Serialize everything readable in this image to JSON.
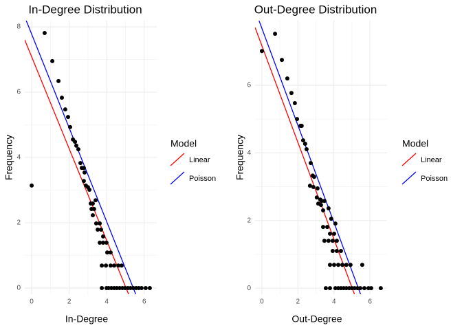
{
  "chart_data": [
    {
      "type": "scatter",
      "title": "In-Degree Distribution",
      "x_label": "In-Degree",
      "y_label": "Frequency",
      "xlim": [
        -0.37,
        6.67
      ],
      "ylim": [
        -0.19,
        8.19
      ],
      "xticks": [
        0,
        2,
        4,
        6
      ],
      "yticks": [
        0,
        2,
        4,
        6,
        8
      ],
      "grid": true,
      "color": "#000000",
      "x": [
        0,
        0.69,
        1.1,
        1.43,
        1.61,
        1.79,
        1.94,
        2.05,
        2.2,
        2.31,
        2.38,
        2.49,
        2.6,
        2.67,
        2.78,
        2.82,
        2.78,
        2.89,
        3.0,
        3.08,
        3.15,
        3.26,
        3.19,
        3.33,
        3.41,
        3.26,
        3.44,
        3.63,
        3.52,
        3.7,
        3.81,
        3.63,
        3.81,
        3.99,
        4.03,
        4.21,
        3.74,
        3.96,
        4.21,
        4.4,
        4.62,
        4.8,
        3.74,
        3.99,
        4.1,
        4.25,
        4.4,
        4.54,
        4.69,
        4.84,
        4.98,
        5.13,
        5.27,
        5.42,
        5.57,
        5.71,
        5.86,
        6.08,
        6.3
      ],
      "values": [
        3.14,
        7.81,
        6.95,
        6.34,
        5.83,
        5.47,
        5.24,
        4.93,
        4.55,
        4.48,
        4.36,
        4.25,
        3.83,
        3.68,
        3.68,
        3.54,
        3.28,
        3.14,
        3.09,
        3.01,
        2.59,
        2.59,
        2.42,
        2.42,
        2.69,
        2.23,
        1.98,
        1.98,
        1.79,
        1.79,
        1.58,
        1.39,
        1.39,
        1.39,
        1.09,
        1.09,
        0.69,
        0.69,
        0.69,
        0.69,
        0.69,
        0.69,
        0,
        0,
        0,
        0,
        0,
        0,
        0,
        0,
        0,
        0,
        0,
        0,
        0,
        0,
        0,
        0,
        0
      ],
      "legend_title": "Model",
      "series": [
        {
          "name": "Linear",
          "color": "#ff0000",
          "x": [
            -0.37,
            5.17
          ],
          "values": [
            7.6,
            -0.19
          ]
        },
        {
          "name": "Poisson",
          "color": "#0000ff",
          "x": [
            -0.29,
            5.55
          ],
          "values": [
            8.19,
            -0.19
          ]
        }
      ]
    },
    {
      "type": "scatter",
      "title": "Out-Degree Distribution",
      "x_label": "Out-Degree",
      "y_label": "Frequency",
      "xlim": [
        -0.38,
        6.95
      ],
      "ylim": [
        -0.18,
        7.91
      ],
      "xticks": [
        0,
        2,
        4,
        6
      ],
      "yticks": [
        0,
        2,
        4,
        6
      ],
      "grid": true,
      "color": "#000000",
      "x": [
        0,
        0.73,
        1.11,
        1.41,
        1.64,
        1.83,
        1.95,
        2.14,
        2.21,
        2.29,
        2.4,
        2.48,
        2.71,
        2.82,
        2.9,
        2.67,
        2.86,
        3.09,
        3.05,
        3.24,
        3.32,
        3.13,
        3.28,
        3.47,
        3.4,
        3.7,
        3.85,
        3.4,
        3.63,
        4.08,
        3.78,
        4.01,
        3.47,
        3.7,
        3.93,
        4.16,
        3.93,
        4.16,
        4.39,
        3.78,
        4.01,
        4.24,
        4.47,
        4.69,
        4.92,
        5.57,
        3.55,
        3.78,
        4.08,
        4.24,
        4.39,
        4.54,
        4.69,
        4.85,
        5.0,
        5.15,
        5.31,
        5.46,
        5.69,
        5.92,
        6.07,
        6.6
      ],
      "values": [
        7.01,
        7.52,
        6.75,
        6.2,
        5.77,
        5.47,
        5.0,
        4.8,
        4.8,
        4.37,
        4.27,
        4.11,
        3.7,
        3.33,
        3.29,
        3.03,
        2.99,
        2.95,
        2.68,
        2.62,
        2.58,
        2.5,
        2.46,
        2.58,
        2.3,
        2.36,
        2.05,
        1.81,
        1.81,
        1.91,
        1.61,
        1.61,
        1.4,
        1.4,
        1.4,
        1.4,
        1.1,
        1.1,
        1.1,
        0.69,
        0.69,
        0.69,
        0.69,
        0.69,
        0.69,
        0.69,
        0,
        0,
        0,
        0,
        0,
        0,
        0,
        0,
        0,
        0,
        0,
        0,
        0,
        0,
        0,
        0
      ],
      "legend_title": "Model",
      "series": [
        {
          "name": "Linear",
          "color": "#ff0000",
          "x": [
            -0.38,
            5.14
          ],
          "values": [
            7.71,
            -0.18
          ]
        },
        {
          "name": "Poisson",
          "color": "#0000ff",
          "x": [
            -0.16,
            5.48
          ],
          "values": [
            7.91,
            -0.18
          ]
        }
      ]
    }
  ]
}
